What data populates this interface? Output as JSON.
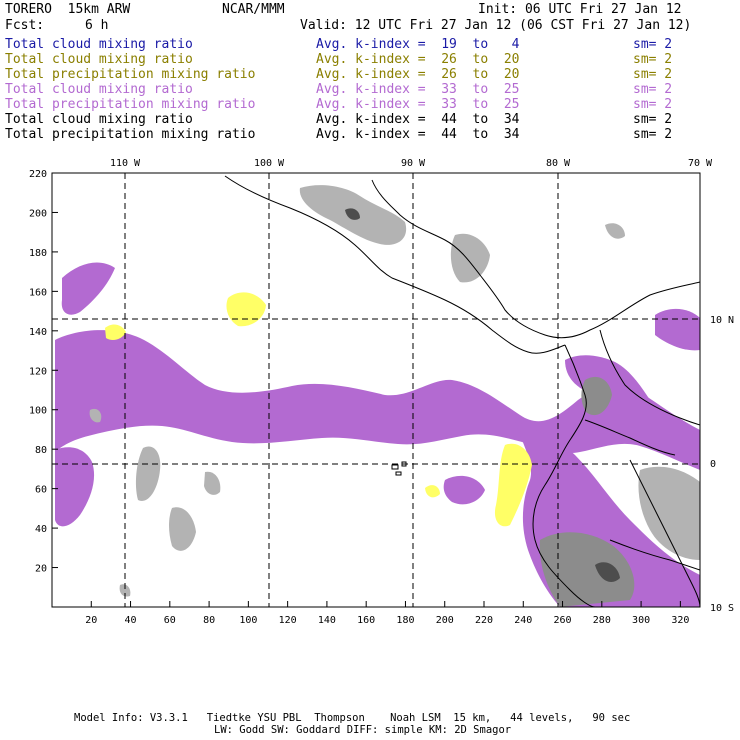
{
  "header": {
    "model": "TORERO  15km ARW",
    "org": "NCAR/MMM",
    "init": "Init: 06 UTC Fri 27 Jan 12",
    "fcst_label": "Fcst:",
    "fcst_value": "6 h",
    "valid": "Valid: 12 UTC Fri 27 Jan 12 (06 CST Fri 27 Jan 12)"
  },
  "legend": [
    {
      "field": "Total cloud mixing ratio",
      "kindex": "Avg. k-index =  19  to   4",
      "sm": "sm= 2",
      "color": "#1a1aa6"
    },
    {
      "field": "Total cloud mixing ratio",
      "kindex": "Avg. k-index =  26  to  20",
      "sm": "sm= 2",
      "color": "#8a7f00"
    },
    {
      "field": "Total precipitation mixing ratio",
      "kindex": "Avg. k-index =  26  to  20",
      "sm": "sm= 2",
      "color": "#8a7f00"
    },
    {
      "field": "Total cloud mixing ratio",
      "kindex": "Avg. k-index =  33  to  25",
      "sm": "sm= 2",
      "color": "#b36ad1"
    },
    {
      "field": "Total precipitation mixing ratio",
      "kindex": "Avg. k-index =  33  to  25",
      "sm": "sm= 2",
      "color": "#b36ad1"
    },
    {
      "field": "Total cloud mixing ratio",
      "kindex": "Avg. k-index =  44  to  34",
      "sm": "sm= 2",
      "color": "#000000"
    },
    {
      "field": "Total precipitation mixing ratio",
      "kindex": "Avg. k-index =  44  to  34",
      "sm": "sm= 2",
      "color": "#000000"
    }
  ],
  "map": {
    "lon_labels": [
      "110 W",
      "100 W",
      "90 W",
      "80 W",
      "70 W"
    ],
    "lat_labels": [
      "10 N",
      "0",
      "10 S"
    ],
    "x_ticks": [
      "20",
      "40",
      "60",
      "80",
      "100",
      "120",
      "140",
      "160",
      "180",
      "200",
      "220",
      "240",
      "260",
      "280",
      "300",
      "320"
    ],
    "y_ticks": [
      "20",
      "40",
      "60",
      "80",
      "100",
      "120",
      "140",
      "160",
      "180",
      "200",
      "220"
    ],
    "colors": {
      "purple": "#b36ad1",
      "yellow": "#ffff66",
      "gray_light": "#b3b3b3",
      "gray_mid": "#8c8c8c",
      "gray_dark": "#4d4d4d"
    }
  },
  "footer": {
    "line1": "Model Info: V3.3.1   Tiedtke YSU PBL  Thompson    Noah LSM  15 km,   44 levels,   90 sec",
    "line2": "LW: Godd SW: Goddard DIFF: simple KM: 2D Smagor"
  }
}
